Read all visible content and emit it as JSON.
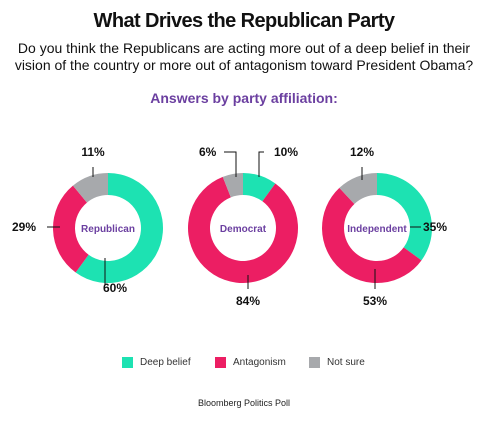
{
  "title": "What Drives the Republican Party",
  "question": "Do you think the Republicans are acting more out of a deep belief in their vision of the country or more out of antagonism toward President Obama?",
  "subtitle": "Answers by party affiliation:",
  "source": "Bloomberg Politics Poll",
  "legend": [
    {
      "label": "Deep belief",
      "color": "#1de2b2"
    },
    {
      "label": "Antagonism",
      "color": "#ec1e63"
    },
    {
      "label": "Not sure",
      "color": "#a7a9ac"
    }
  ],
  "chart_data": {
    "type": "pie",
    "unit": "%",
    "categories": [
      "Deep belief",
      "Antagonism",
      "Not sure"
    ],
    "colors": [
      "#1de2b2",
      "#ec1e63",
      "#a7a9ac"
    ],
    "charts": [
      {
        "name": "Republican",
        "values": [
          60,
          29,
          11
        ]
      },
      {
        "name": "Democrat",
        "values": [
          10,
          84,
          6
        ]
      },
      {
        "name": "Independent",
        "values": [
          35,
          53,
          12
        ]
      }
    ]
  }
}
